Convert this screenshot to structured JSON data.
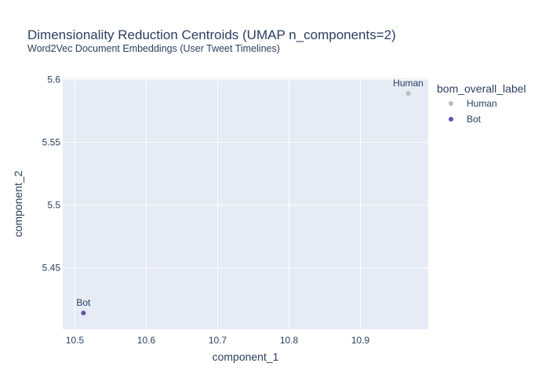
{
  "chart_data": {
    "type": "scatter",
    "title": "Dimensionality Reduction Centroids (UMAP n_components=2)",
    "subtitle": "Word2Vec Document Embeddings (User Tweet Timelines)",
    "xlabel": "component_1",
    "ylabel": "component_2",
    "xlim": [
      10.483,
      10.995
    ],
    "ylim": [
      5.401,
      5.601
    ],
    "xticks": [
      10.5,
      10.6,
      10.7,
      10.8,
      10.9
    ],
    "xtick_labels": [
      "10.5",
      "10.6",
      "10.7",
      "10.8",
      "10.9"
    ],
    "yticks": [
      5.45,
      5.5,
      5.55,
      5.6
    ],
    "ytick_labels": [
      "5.45",
      "5.5",
      "5.55",
      "5.6"
    ],
    "grid": true,
    "legend": {
      "title": "bom_overall_label",
      "placement": "right"
    },
    "series": [
      {
        "name": "Human",
        "color": "#bababa",
        "points": [
          {
            "x": 10.967,
            "y": 5.589,
            "label": "Human"
          }
        ]
      },
      {
        "name": "Bot",
        "color": "#6a51a3",
        "points": [
          {
            "x": 10.512,
            "y": 5.414,
            "label": "Bot"
          }
        ]
      }
    ]
  },
  "colors": {
    "plot_bg": "#e5ecf6",
    "grid": "#ffffff",
    "text": "#2a3f5f"
  }
}
